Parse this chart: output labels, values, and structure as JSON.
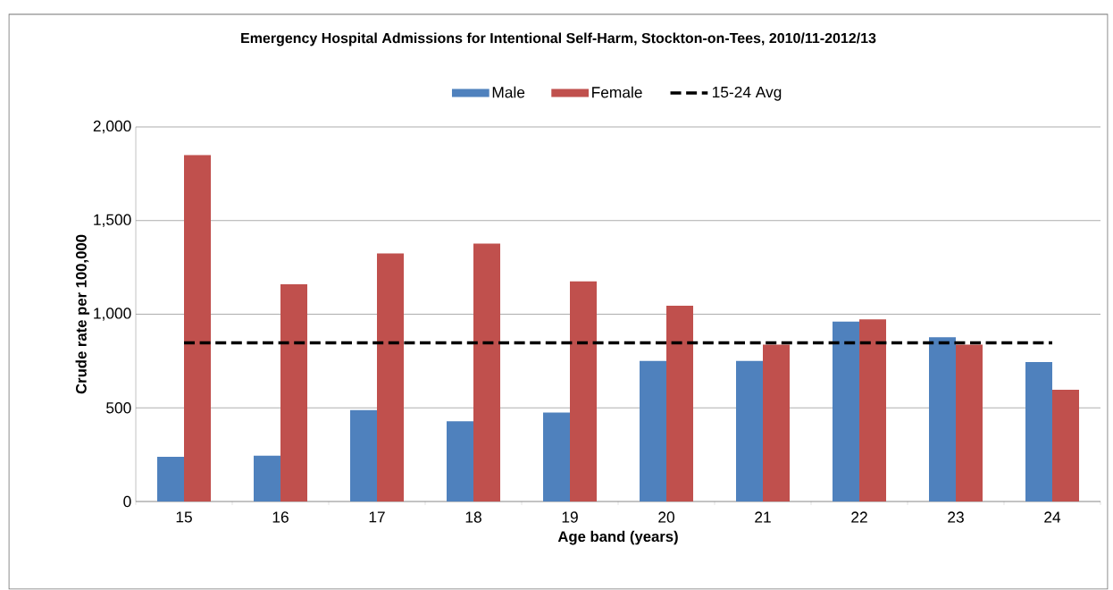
{
  "chart_data": {
    "type": "bar",
    "title": "Emergency Hospital Admissions for Intentional Self-Harm, Stockton-on-Tees, 2010/11-2012/13",
    "xlabel": "Age band (years)",
    "ylabel": "Crude rate per 100,000",
    "categories": [
      "15",
      "16",
      "17",
      "18",
      "19",
      "20",
      "21",
      "22",
      "23",
      "24"
    ],
    "series": [
      {
        "name": "Male",
        "color": "#4f81bd",
        "values": [
          239,
          245,
          488,
          429,
          475,
          751,
          751,
          961,
          877,
          745
        ]
      },
      {
        "name": "Female",
        "color": "#c0504d",
        "values": [
          1850,
          1160,
          1324,
          1377,
          1176,
          1045,
          838,
          972,
          838,
          597
        ]
      },
      {
        "name": "15-24 Avg",
        "type": "line",
        "color": "#000000",
        "line_style": "dashed",
        "values": [
          847,
          847,
          847,
          847,
          847,
          847,
          847,
          847,
          847,
          847
        ]
      }
    ],
    "ylim": [
      0,
      2000
    ],
    "yticks": [
      0,
      500,
      {
        "value": 1000,
        "label": "1,000"
      },
      {
        "value": 1500,
        "label": "1,500"
      },
      {
        "value": 2000,
        "label": "2,000"
      }
    ],
    "grid": "y",
    "legend": "top"
  }
}
